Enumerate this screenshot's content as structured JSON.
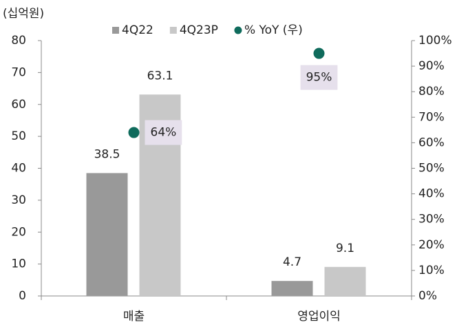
{
  "chart_data": {
    "type": "bar",
    "unit_label": "(십억원)",
    "categories": [
      "매출",
      "영업이익"
    ],
    "series": [
      {
        "name": "4Q22",
        "color": "#999999",
        "values": [
          38.5,
          4.7
        ]
      },
      {
        "name": "4Q23P",
        "color": "#c8c8c8",
        "values": [
          63.1,
          9.1
        ]
      },
      {
        "name": "% YoY (우)",
        "type": "scatter",
        "axis": "y2",
        "color": "#0f6b5c",
        "values": [
          64,
          95
        ],
        "value_labels": [
          "64%",
          "95%"
        ]
      }
    ],
    "ylim": [
      0,
      80
    ],
    "yticks": [
      0,
      10,
      20,
      30,
      40,
      50,
      60,
      70,
      80
    ],
    "y2lim": [
      0,
      100
    ],
    "y2ticks": [
      {
        "value": 0,
        "label": "0%"
      },
      {
        "value": 10,
        "label": "10%"
      },
      {
        "value": 20,
        "label": "20%"
      },
      {
        "value": 30,
        "label": "30%"
      },
      {
        "value": 40,
        "label": "40%"
      },
      {
        "value": 50,
        "label": "50%"
      },
      {
        "value": 60,
        "label": "60%"
      },
      {
        "value": 70,
        "label": "70%"
      },
      {
        "value": 80,
        "label": "80%"
      },
      {
        "value": 90,
        "label": "90%"
      },
      {
        "value": 100,
        "label": "100%"
      }
    ],
    "grid": false,
    "legend": "top"
  }
}
